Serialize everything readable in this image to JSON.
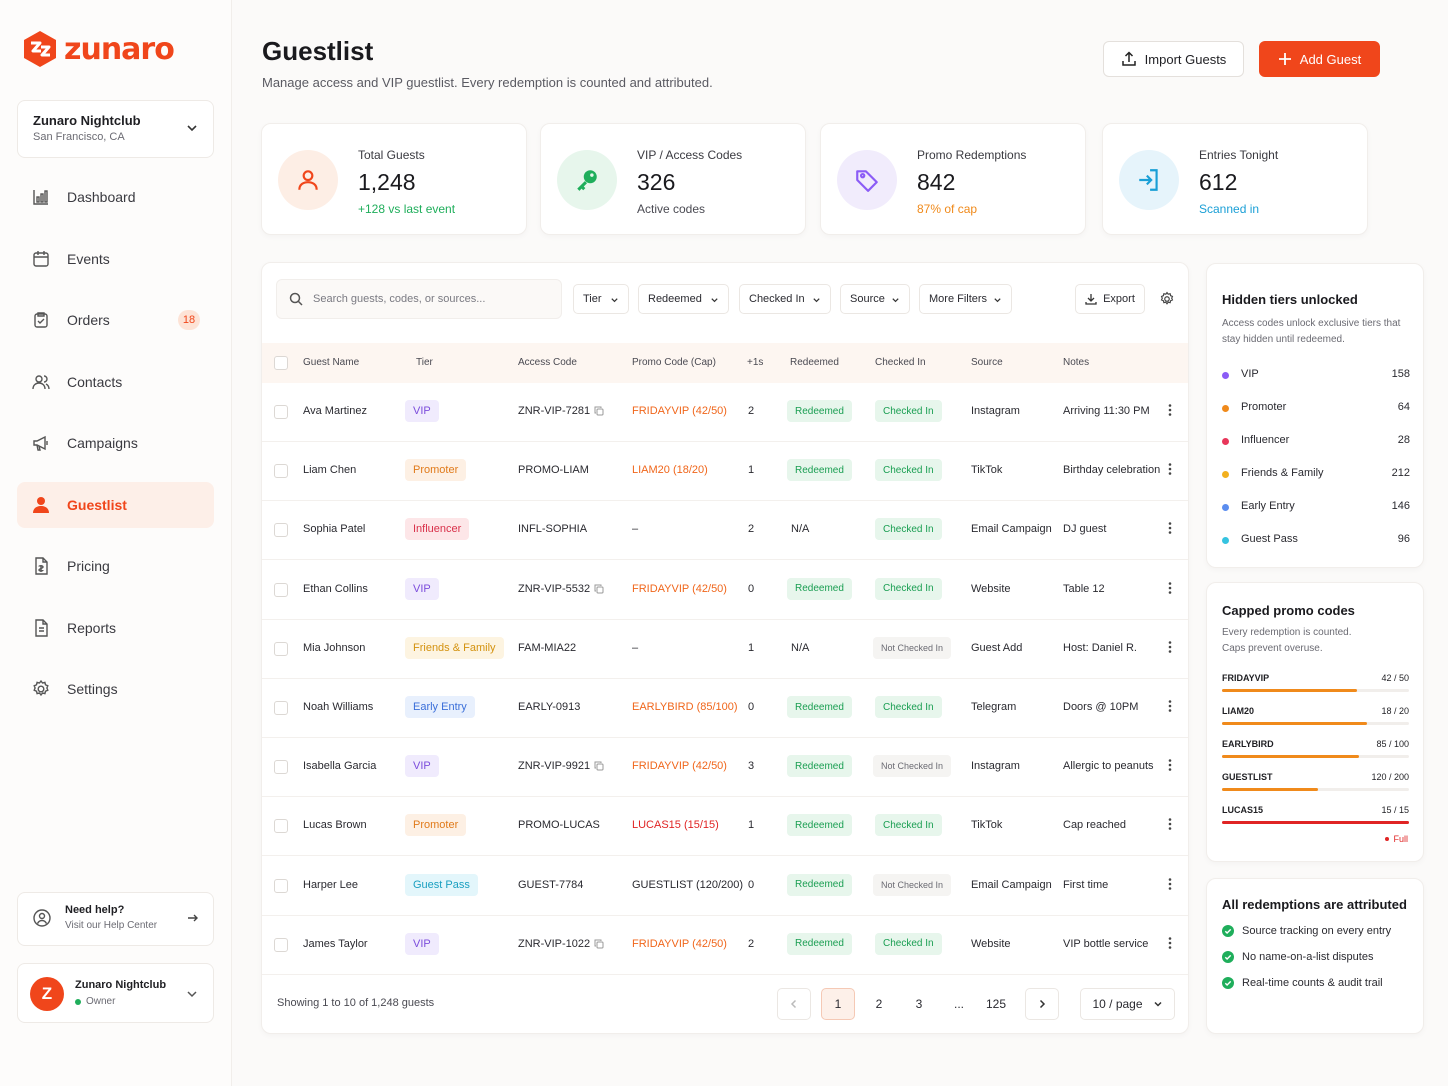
{
  "brand": {
    "name": "zunaro",
    "accent": "#f0461b"
  },
  "venue": {
    "name": "Zunaro Nightclub",
    "location": "San Francisco, CA"
  },
  "nav": [
    {
      "label": "Dashboard",
      "icon": "chart-icon"
    },
    {
      "label": "Events",
      "icon": "calendar-icon"
    },
    {
      "label": "Orders",
      "icon": "clipboard-icon",
      "badge": "18"
    },
    {
      "label": "Contacts",
      "icon": "users-icon"
    },
    {
      "label": "Campaigns",
      "icon": "megaphone-icon"
    },
    {
      "label": "Guestlist",
      "icon": "person-icon",
      "active": true
    },
    {
      "label": "Pricing",
      "icon": "tag-doc-icon"
    },
    {
      "label": "Reports",
      "icon": "report-icon"
    },
    {
      "label": "Settings",
      "icon": "gear-icon"
    }
  ],
  "help": {
    "title": "Need help?",
    "subtitle": "Visit our Help Center"
  },
  "user": {
    "initial": "Z",
    "name": "Zunaro Nightclub",
    "role": "Owner"
  },
  "header": {
    "title": "Guestlist",
    "subtitle": "Manage access and VIP guestlist. Every redemption is counted and attributed.",
    "import_label": "Import Guests",
    "add_label": "Add Guest"
  },
  "stats": [
    {
      "label": "Total Guests",
      "value": "1,248",
      "sub": "+128 vs last event",
      "sub_color": "#1fae5b",
      "icon": "person-icon",
      "bg": "#fdeee5",
      "fg": "#f0461b"
    },
    {
      "label": "VIP / Access Codes",
      "value": "326",
      "sub": "Active codes",
      "sub_color": "#4a4a52",
      "icon": "key-icon",
      "bg": "#e7f6ec",
      "fg": "#1fae5b"
    },
    {
      "label": "Promo Redemptions",
      "value": "842",
      "sub": "87% of cap",
      "sub_color": "#f08a1b",
      "icon": "tag-icon",
      "bg": "#f1ecfc",
      "fg": "#8b5cf6"
    },
    {
      "label": "Entries Tonight",
      "value": "612",
      "sub": "Scanned in",
      "sub_color": "#1a9fd6",
      "icon": "enter-icon",
      "bg": "#e6f4fb",
      "fg": "#1a9fd6"
    }
  ],
  "toolbar": {
    "search_placeholder": "Search guests, codes, or sources...",
    "filters": [
      "Tier",
      "Redeemed",
      "Checked In",
      "Source",
      "More Filters"
    ],
    "export_label": "Export"
  },
  "columns": [
    "Guest Name",
    "Tier",
    "Access Code",
    "Promo Code (Cap)",
    "+1s",
    "Redeemed",
    "Checked In",
    "Source",
    "Notes"
  ],
  "rows": [
    {
      "name": "Ava Martinez",
      "tier": "VIP",
      "tier_type": "vip",
      "code": "ZNR-VIP-7281",
      "copy": true,
      "promo": "FRIDAYVIP (42/50)",
      "promo_type": "orange",
      "plus": "2",
      "redeemed": "Redeemed",
      "checked": "Checked In",
      "source": "Instagram",
      "notes": "Arriving 11:30 PM"
    },
    {
      "name": "Liam Chen",
      "tier": "Promoter",
      "tier_type": "promoter",
      "code": "PROMO-LIAM",
      "copy": false,
      "promo": "LIAM20 (18/20)",
      "promo_type": "orange",
      "plus": "1",
      "redeemed": "Redeemed",
      "checked": "Checked In",
      "source": "TikTok",
      "notes": "Birthday celebration"
    },
    {
      "name": "Sophia Patel",
      "tier": "Influencer",
      "tier_type": "influencer",
      "code": "INFL-SOPHIA",
      "copy": false,
      "promo": "–",
      "promo_type": "plain",
      "plus": "2",
      "redeemed": "N/A",
      "checked": "Checked In",
      "source": "Email Campaign",
      "notes": "DJ guest"
    },
    {
      "name": "Ethan Collins",
      "tier": "VIP",
      "tier_type": "vip",
      "code": "ZNR-VIP-5532",
      "copy": true,
      "promo": "FRIDAYVIP (42/50)",
      "promo_type": "orange",
      "plus": "0",
      "redeemed": "Redeemed",
      "checked": "Checked In",
      "source": "Website",
      "notes": "Table 12"
    },
    {
      "name": "Mia Johnson",
      "tier": "Friends & Family",
      "tier_type": "friends",
      "code": "FAM-MIA22",
      "copy": false,
      "promo": "–",
      "promo_type": "plain",
      "plus": "1",
      "redeemed": "N/A",
      "checked": "Not Checked In",
      "source": "Guest Add",
      "notes": "Host: Daniel R."
    },
    {
      "name": "Noah Williams",
      "tier": "Early Entry",
      "tier_type": "early",
      "code": "EARLY-0913",
      "copy": false,
      "promo": "EARLYBIRD (85/100)",
      "promo_type": "orange",
      "plus": "0",
      "redeemed": "Redeemed",
      "checked": "Checked In",
      "source": "Telegram",
      "notes": "Doors @ 10PM"
    },
    {
      "name": "Isabella Garcia",
      "tier": "VIP",
      "tier_type": "vip",
      "code": "ZNR-VIP-9921",
      "copy": true,
      "promo": "FRIDAYVIP (42/50)",
      "promo_type": "orange",
      "plus": "3",
      "redeemed": "Redeemed",
      "checked": "Not Checked In",
      "source": "Instagram",
      "notes": "Allergic to peanuts"
    },
    {
      "name": "Lucas Brown",
      "tier": "Promoter",
      "tier_type": "promoter",
      "code": "PROMO-LUCAS",
      "copy": false,
      "promo": "LUCAS15 (15/15)",
      "promo_type": "red",
      "plus": "1",
      "redeemed": "Redeemed",
      "checked": "Checked In",
      "source": "TikTok",
      "notes": "Cap reached"
    },
    {
      "name": "Harper Lee",
      "tier": "Guest Pass",
      "tier_type": "guestpass",
      "code": "GUEST-7784",
      "copy": false,
      "promo": "GUESTLIST (120/200)",
      "promo_type": "plain",
      "plus": "0",
      "redeemed": "Redeemed",
      "checked": "Not Checked In",
      "source": "Email Campaign",
      "notes": "First time"
    },
    {
      "name": "James Taylor",
      "tier": "VIP",
      "tier_type": "vip",
      "code": "ZNR-VIP-1022",
      "copy": true,
      "promo": "FRIDAYVIP (42/50)",
      "promo_type": "orange",
      "plus": "2",
      "redeemed": "Redeemed",
      "checked": "Checked In",
      "source": "Website",
      "notes": "VIP bottle service"
    }
  ],
  "footer": {
    "showing": "Showing 1 to 10 of 1,248 guests",
    "pages": [
      "1",
      "2",
      "3",
      "...",
      "125"
    ],
    "current_page": "1",
    "per_page": "10 / page"
  },
  "hidden_tiers": {
    "title": "Hidden tiers unlocked",
    "desc": "Access codes unlock exclusive tiers that stay hidden until redeemed.",
    "items": [
      {
        "name": "VIP",
        "count": "158",
        "color": "#8b5cf6"
      },
      {
        "name": "Promoter",
        "count": "64",
        "color": "#f08a1b"
      },
      {
        "name": "Influencer",
        "count": "28",
        "color": "#e8365a"
      },
      {
        "name": "Friends & Family",
        "count": "212",
        "color": "#f2b01e"
      },
      {
        "name": "Early Entry",
        "count": "146",
        "color": "#5b8def"
      },
      {
        "name": "Guest Pass",
        "count": "96",
        "color": "#35c3e0"
      }
    ]
  },
  "capped": {
    "title": "Capped promo codes",
    "desc": "Every redemption is counted. Caps prevent overuse.",
    "items": [
      {
        "name": "FRIDAYVIP",
        "count": "42 / 50",
        "fraction": 0.84,
        "color": "#f08a1b"
      },
      {
        "name": "LIAM20",
        "count": "18 / 20",
        "fraction": 0.9,
        "color": "#f08a1b"
      },
      {
        "name": "EARLYBIRD",
        "count": "85 / 100",
        "fraction": 0.85,
        "color": "#f08a1b"
      },
      {
        "name": "GUESTLIST",
        "count": "120 / 200",
        "fraction": 0.6,
        "color": "#f08a1b"
      },
      {
        "name": "LUCAS15",
        "count": "15 / 15",
        "fraction": 1.0,
        "color": "#e02424"
      }
    ],
    "full_label": "Full"
  },
  "attributed": {
    "title": "All redemptions are attributed",
    "items": [
      "Source tracking on every entry",
      "No name-on-a-list disputes",
      "Real-time counts & audit trail"
    ]
  }
}
